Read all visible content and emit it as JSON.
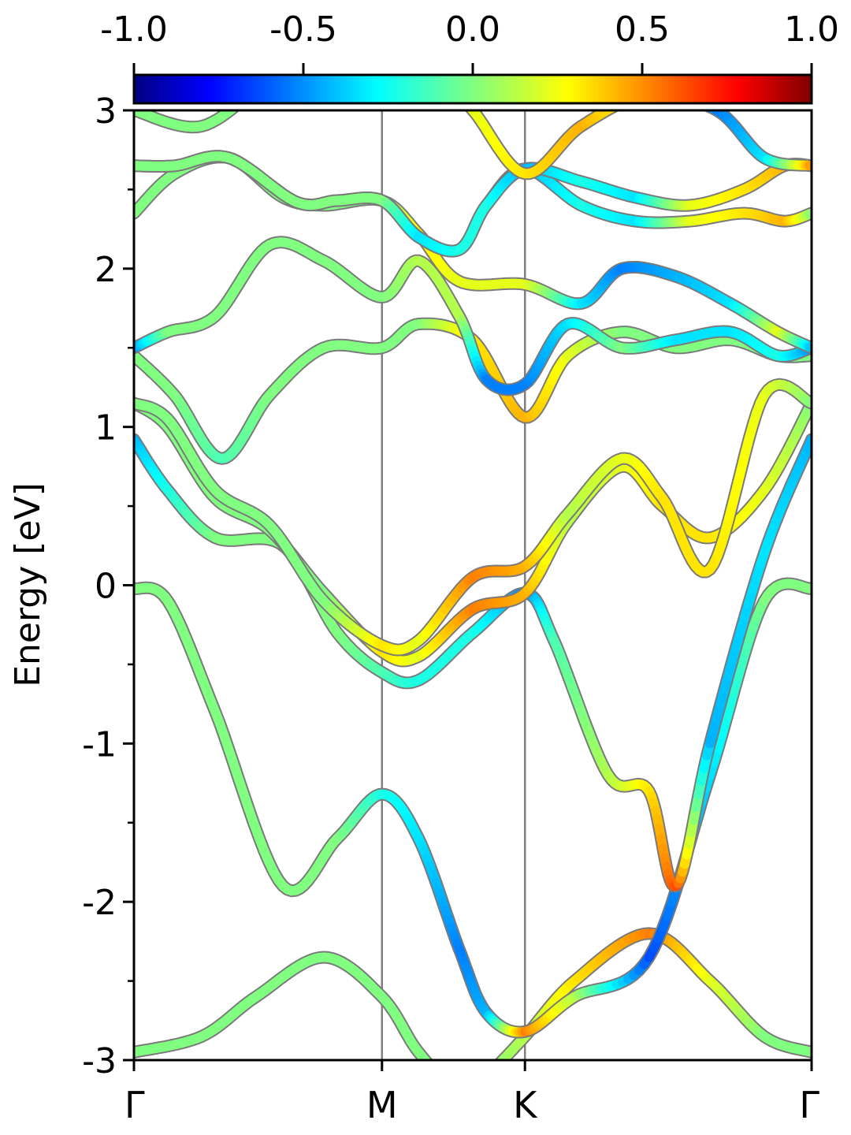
{
  "chart_data": {
    "type": "line",
    "title": "",
    "xlabel": "",
    "ylabel": "Energy [eV]",
    "ylim": [
      -3,
      3
    ],
    "yticks": [
      -3,
      -2,
      -1,
      0,
      1,
      2,
      3
    ],
    "ytick_labels": [
      "-3",
      "-2",
      "-1",
      "0",
      "1",
      "2",
      "3"
    ],
    "x_positions": [
      0,
      0.366,
      0.577,
      1.0
    ],
    "x_tick_labels": [
      "Γ",
      "M",
      "K",
      "Γ"
    ],
    "grid": false,
    "colormap": "jet",
    "colorbar": {
      "range": [
        -1.0,
        1.0
      ],
      "ticks": [
        -1.0,
        -0.5,
        0.0,
        0.5,
        1.0
      ],
      "tick_labels": [
        "-1.0",
        "-0.5",
        "0.0",
        "0.5",
        "1.0"
      ],
      "position": "top"
    },
    "series": [
      {
        "x": [
          0,
          0.1,
          0.18,
          0.28,
          0.366,
          0.42,
          0.48,
          0.52,
          0.577,
          0.65,
          0.76,
          0.85,
          0.93,
          1.0
        ],
        "y": [
          -2.95,
          -2.85,
          -2.6,
          -2.35,
          -2.6,
          -2.95,
          -3.2,
          -3.1,
          -2.85,
          -2.5,
          -2.2,
          -2.5,
          -2.85,
          -2.95
        ],
        "c": [
          0,
          0,
          0,
          0,
          0,
          0,
          0,
          0,
          0.1,
          0.3,
          0.5,
          0.2,
          0,
          0
        ]
      },
      {
        "x": [
          0,
          0.05,
          0.12,
          0.22,
          0.3,
          0.366,
          0.42,
          0.48,
          0.52,
          0.577,
          0.65,
          0.76,
          0.85,
          0.93,
          1.0
        ],
        "y": [
          -0.02,
          -0.1,
          -0.8,
          -1.9,
          -1.6,
          -1.32,
          -1.6,
          -2.3,
          -2.7,
          -2.82,
          -2.6,
          -2.35,
          -1.2,
          -0.1,
          -0.02
        ],
        "c": [
          0,
          0,
          0,
          0,
          0,
          -0.2,
          -0.3,
          -0.5,
          -0.4,
          0.5,
          0.1,
          -0.6,
          -0.3,
          0,
          0
        ]
      },
      {
        "x": [
          0,
          0.05,
          0.12,
          0.22,
          0.3,
          0.366,
          0.42,
          0.5,
          0.577,
          0.62,
          0.7,
          0.76,
          0.8,
          0.85,
          0.93,
          1.0
        ],
        "y": [
          0.92,
          0.6,
          0.3,
          0.25,
          -0.3,
          -0.55,
          -0.6,
          -0.3,
          -0.05,
          -0.35,
          -1.2,
          -1.3,
          -1.9,
          -1.0,
          0.2,
          0.92
        ],
        "c": [
          -0.4,
          -0.2,
          0,
          0,
          0,
          -0.1,
          -0.2,
          -0.2,
          -0.5,
          -0.1,
          0.1,
          0.3,
          0.6,
          -0.4,
          -0.3,
          -0.4
        ]
      },
      {
        "x": [
          0,
          0.05,
          0.12,
          0.2,
          0.28,
          0.366,
          0.42,
          0.5,
          0.577,
          0.64,
          0.72,
          0.78,
          0.85,
          0.93,
          1.0
        ],
        "y": [
          1.15,
          1.0,
          0.55,
          0.35,
          -0.05,
          -0.42,
          -0.45,
          -0.15,
          -0.05,
          0.4,
          0.75,
          0.5,
          0.3,
          0.6,
          1.15
        ],
        "c": [
          0,
          0,
          0,
          0,
          0,
          0.3,
          0.2,
          0.5,
          0.4,
          0.1,
          0.2,
          0.3,
          0.3,
          0.2,
          0
        ],
        "alt_y": [
          1.15,
          1.05,
          0.6,
          0.38,
          -0.1,
          -0.38,
          -0.35,
          0.05,
          0.12,
          0.45,
          0.8,
          0.55,
          0.1,
          1.2,
          1.15
        ]
      },
      {
        "x": [
          0,
          0.06,
          0.13,
          0.2,
          0.28,
          0.366,
          0.42,
          0.5,
          0.577,
          0.64,
          0.72,
          0.8,
          0.88,
          0.95,
          1.0
        ],
        "y": [
          1.45,
          1.2,
          0.8,
          1.2,
          1.5,
          1.5,
          1.65,
          1.55,
          1.06,
          1.45,
          1.6,
          1.5,
          1.55,
          1.45,
          1.45
        ],
        "c": [
          0,
          0,
          -0.1,
          0,
          0,
          0,
          0,
          0.3,
          0.4,
          0.2,
          0,
          0,
          0,
          0,
          0
        ]
      },
      {
        "x": [
          0,
          0.05,
          0.12,
          0.2,
          0.28,
          0.366,
          0.42,
          0.48,
          0.52,
          0.577,
          0.64,
          0.72,
          0.8,
          0.88,
          0.95,
          1.0
        ],
        "y": [
          1.5,
          1.6,
          1.7,
          2.15,
          2.05,
          1.82,
          2.05,
          1.7,
          1.3,
          1.27,
          1.65,
          1.5,
          1.55,
          1.6,
          1.45,
          1.5
        ],
        "c": [
          -0.5,
          0,
          0,
          0,
          0,
          0,
          0.1,
          0.1,
          -0.5,
          -0.5,
          -0.3,
          0,
          -0.3,
          -0.3,
          -0.2,
          -0.5
        ]
      },
      {
        "x": [
          0,
          0.06,
          0.14,
          0.22,
          0.28,
          0.366,
          0.42,
          0.48,
          0.577,
          0.66,
          0.72,
          0.8,
          0.88,
          0.95,
          1.0
        ],
        "y": [
          2.35,
          2.6,
          2.7,
          2.45,
          2.4,
          2.43,
          2.22,
          1.92,
          1.9,
          1.78,
          2.0,
          1.95,
          1.78,
          1.6,
          1.5
        ],
        "c": [
          0,
          0,
          0,
          0,
          0,
          0,
          0.3,
          0.2,
          0.2,
          -0.3,
          -0.5,
          -0.4,
          -0.3,
          0.2,
          -0.4
        ]
      },
      {
        "x": [
          0,
          0.06,
          0.14,
          0.24,
          0.3,
          0.366,
          0.42,
          0.48,
          0.52,
          0.577,
          0.66,
          0.74,
          0.82,
          0.9,
          0.96,
          1.0
        ],
        "y": [
          2.65,
          2.65,
          2.7,
          2.42,
          2.43,
          2.43,
          2.2,
          2.12,
          2.4,
          2.63,
          2.4,
          2.3,
          2.3,
          2.35,
          2.3,
          2.35
        ],
        "c": [
          0,
          0,
          0,
          0,
          0,
          0,
          -0.3,
          -0.2,
          -0.2,
          -0.4,
          -0.2,
          -0.3,
          0.2,
          0.3,
          0.4,
          0
        ],
        "alt_y": [
          2.65,
          2.65,
          2.7,
          2.42,
          2.43,
          2.43,
          2.2,
          2.12,
          2.4,
          2.63,
          2.55,
          2.45,
          2.4,
          2.5,
          2.65,
          2.65
        ]
      },
      {
        "x": [
          0,
          0.1,
          0.2,
          0.28,
          0.45,
          0.5,
          0.577,
          0.66,
          0.76,
          0.86,
          0.93,
          1.0
        ],
        "y": [
          3.0,
          2.9,
          3.2,
          3.4,
          3.2,
          3.0,
          2.6,
          2.9,
          3.1,
          3.0,
          2.7,
          2.65
        ],
        "c": [
          0,
          0,
          0,
          0,
          0.3,
          0.2,
          0.3,
          0.4,
          0.2,
          -0.5,
          -0.3,
          0.5
        ]
      }
    ]
  }
}
